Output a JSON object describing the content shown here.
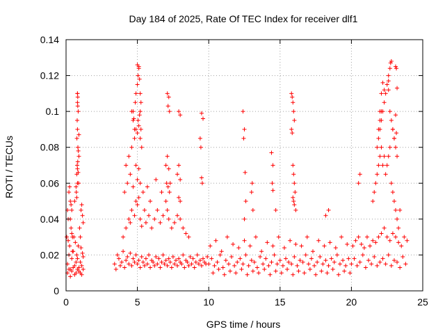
{
  "chart_data": {
    "type": "scatter",
    "title": "Day 184 of 2025, Rate Of TEC Index for receiver dlf1",
    "xlabel": "GPS time / hours",
    "ylabel": "ROTI / TECUs",
    "xlim": [
      0,
      25
    ],
    "ylim": [
      0,
      0.14
    ],
    "x_ticks": [
      0,
      5,
      10,
      15,
      20,
      25
    ],
    "x_tick_labels": [
      "0",
      "5",
      "10",
      "15",
      "20",
      "25"
    ],
    "y_ticks": [
      0,
      0.02,
      0.04,
      0.06,
      0.08,
      0.1,
      0.12,
      0.14
    ],
    "y_tick_labels": [
      "0",
      "0.02",
      "0.04",
      "0.06",
      "0.08",
      "0.1",
      "0.12",
      "0.14"
    ],
    "grid": true,
    "marker": "plus",
    "color": "#ff0000",
    "series": [
      {
        "x": [
          0.1,
          0.2,
          0.3,
          0.4,
          0.5,
          0.6,
          0.7,
          0.75,
          0.8,
          0.85,
          0.9,
          1.0,
          1.1,
          1.2,
          0.05,
          0.15,
          0.25,
          0.35,
          0.45,
          0.55,
          0.65,
          1.05,
          1.15,
          0.1,
          0.2,
          0.3,
          0.4,
          0.5,
          0.6,
          0.7,
          0.8,
          0.9,
          1.0,
          1.1,
          1.2,
          0.3,
          0.4,
          0.6,
          0.75,
          0.78,
          0.8,
          0.82,
          0.85,
          0.88,
          0.9,
          0.8,
          0.82,
          0.85,
          0.78,
          0.76,
          0.8,
          0.83,
          0.86,
          0.9,
          0.8,
          0.8,
          0.82,
          0.7,
          0.72,
          0.75,
          0.8,
          1.05,
          1.1,
          1.15,
          1.2,
          1.0,
          0.95,
          0.2,
          0.25,
          0.3,
          0.35,
          0.1,
          0.15,
          0.4,
          0.45,
          3.4,
          3.5,
          3.6,
          3.7,
          3.8,
          3.9,
          4.0,
          4.1,
          4.2,
          4.3,
          4.4,
          4.5,
          4.6,
          4.7,
          4.8,
          4.9,
          5.0,
          5.1,
          5.2,
          5.3,
          5.4,
          5.5,
          5.6,
          5.7,
          5.8,
          5.9,
          6.0,
          6.1,
          6.2,
          6.3,
          6.4,
          6.5,
          6.6,
          6.7,
          6.8,
          6.9,
          7.0,
          7.1,
          7.2,
          7.3,
          7.4,
          7.5,
          7.6,
          7.7,
          7.8,
          7.9,
          8.0,
          8.1,
          8.2,
          8.3,
          8.4,
          8.5,
          8.6,
          8.7,
          8.8,
          8.9,
          9.0,
          9.1,
          9.2,
          9.3,
          9.4,
          9.5,
          9.6,
          9.7,
          9.8,
          9.9,
          4.0,
          4.2,
          4.4,
          4.5,
          4.6,
          4.8,
          4.9,
          5.0,
          5.1,
          5.2,
          5.3,
          5.5,
          5.6,
          5.8,
          6.0,
          6.2,
          6.4,
          6.6,
          6.8,
          7.0,
          7.1,
          7.2,
          7.4,
          7.6,
          7.8,
          8.0,
          8.2,
          8.4,
          8.6,
          4.1,
          4.3,
          4.5,
          4.7,
          4.9,
          5.0,
          5.1,
          5.2,
          5.4,
          5.7,
          5.9,
          6.3,
          6.7,
          7.05,
          7.15,
          7.25,
          7.9,
          8.0,
          4.2,
          4.4,
          4.6,
          4.8,
          4.9,
          5.0,
          5.05,
          5.1,
          5.15,
          5.2,
          5.25,
          5.3,
          7.0,
          7.1,
          7.2,
          7.3,
          7.8,
          7.9,
          8.0,
          4.6,
          4.7,
          4.8,
          4.85,
          4.9,
          5.0,
          5.05,
          5.1,
          5.15,
          5.2,
          5.25,
          5.0,
          5.1,
          5.2,
          4.7,
          4.75,
          7.1,
          7.2,
          7.15,
          7.25,
          7.9,
          8.0,
          9.5,
          9.6,
          9.4,
          9.45,
          9.5,
          9.55,
          10.0,
          10.2,
          10.4,
          10.6,
          10.8,
          11.0,
          11.2,
          11.4,
          11.6,
          11.8,
          12.0,
          12.2,
          12.4,
          12.6,
          12.8,
          13.0,
          13.2,
          13.4,
          13.6,
          13.8,
          14.0,
          14.2,
          14.4,
          14.6,
          14.8,
          15.0,
          15.2,
          15.4,
          15.6,
          15.8,
          16.0,
          16.2,
          16.4,
          16.6,
          16.8,
          17.0,
          17.2,
          17.4,
          17.6,
          17.8,
          18.0,
          18.2,
          18.4,
          18.6,
          18.8,
          19.0,
          19.2,
          19.4,
          19.6,
          19.8,
          10.1,
          10.5,
          10.9,
          11.3,
          11.7,
          12.1,
          12.5,
          12.9,
          13.3,
          13.7,
          14.1,
          14.5,
          14.9,
          15.3,
          15.7,
          16.1,
          16.5,
          16.9,
          17.3,
          17.7,
          18.1,
          18.5,
          18.9,
          19.3,
          19.7,
          10.3,
          10.7,
          11.1,
          11.5,
          11.9,
          12.3,
          12.7,
          13.1,
          13.5,
          13.9,
          14.3,
          14.7,
          15.1,
          15.5,
          15.9,
          16.3,
          16.7,
          17.1,
          17.5,
          17.9,
          18.3,
          18.7,
          19.1,
          19.5,
          19.9,
          12.4,
          12.5,
          12.45,
          12.55,
          12.6,
          12.5,
          13.0,
          13.05,
          13.1,
          14.4,
          14.5,
          14.45,
          14.5,
          14.7,
          15.8,
          15.85,
          15.9,
          15.95,
          16.0,
          15.8,
          15.85,
          15.9,
          15.95,
          16.0,
          16.05,
          15.9,
          15.95,
          16.0,
          16.1,
          18.2,
          18.4,
          20.0,
          20.2,
          20.4,
          20.6,
          20.8,
          21.0,
          21.2,
          21.4,
          21.6,
          21.8,
          22.0,
          22.2,
          22.4,
          22.6,
          22.8,
          23.0,
          23.2,
          23.4,
          23.6,
          23.8,
          20.1,
          20.3,
          20.5,
          20.7,
          20.9,
          21.1,
          21.3,
          21.5,
          21.7,
          21.9,
          22.1,
          22.3,
          22.5,
          22.7,
          22.9,
          23.1,
          23.3,
          23.5,
          23.7,
          23.9,
          20.5,
          20.6,
          21.5,
          21.6,
          21.7,
          21.8,
          21.9,
          22.0,
          22.1,
          22.2,
          22.3,
          22.4,
          22.5,
          22.6,
          22.7,
          22.8,
          22.9,
          23.0,
          23.1,
          23.2,
          23.3,
          23.4,
          21.8,
          21.9,
          22.0,
          22.1,
          22.2,
          22.3,
          22.4,
          22.5,
          22.6,
          22.7,
          22.8,
          22.9,
          23.0,
          23.1,
          23.2,
          21.9,
          22.0,
          22.1,
          22.2,
          22.3,
          22.6,
          22.7,
          22.75,
          22.8,
          23.1,
          23.15,
          23.2,
          22.0,
          22.1,
          22.6,
          23.1,
          22.9,
          23.0,
          23.15
        ],
        "y": [
          0.015,
          0.02,
          0.012,
          0.018,
          0.022,
          0.014,
          0.016,
          0.02,
          0.018,
          0.025,
          0.013,
          0.016,
          0.014,
          0.019,
          0.03,
          0.028,
          0.025,
          0.035,
          0.022,
          0.03,
          0.027,
          0.024,
          0.021,
          0.01,
          0.012,
          0.008,
          0.011,
          0.013,
          0.009,
          0.01,
          0.012,
          0.011,
          0.01,
          0.009,
          0.012,
          0.04,
          0.045,
          0.05,
          0.065,
          0.07,
          0.068,
          0.072,
          0.066,
          0.06,
          0.075,
          0.11,
          0.108,
          0.1,
          0.095,
          0.085,
          0.09,
          0.08,
          0.078,
          0.087,
          0.105,
          0.11,
          0.103,
          0.058,
          0.055,
          0.052,
          0.06,
          0.045,
          0.048,
          0.042,
          0.038,
          0.03,
          0.035,
          0.055,
          0.058,
          0.05,
          0.048,
          0.045,
          0.04,
          0.032,
          0.03,
          0.015,
          0.012,
          0.02,
          0.018,
          0.014,
          0.016,
          0.022,
          0.013,
          0.017,
          0.019,
          0.015,
          0.021,
          0.014,
          0.018,
          0.016,
          0.02,
          0.015,
          0.017,
          0.013,
          0.019,
          0.016,
          0.014,
          0.018,
          0.015,
          0.02,
          0.013,
          0.017,
          0.016,
          0.014,
          0.019,
          0.015,
          0.018,
          0.013,
          0.016,
          0.02,
          0.015,
          0.017,
          0.014,
          0.018,
          0.016,
          0.013,
          0.019,
          0.015,
          0.017,
          0.014,
          0.018,
          0.016,
          0.015,
          0.02,
          0.013,
          0.017,
          0.016,
          0.014,
          0.019,
          0.015,
          0.018,
          0.013,
          0.016,
          0.02,
          0.015,
          0.017,
          0.014,
          0.018,
          0.016,
          0.015,
          0.019,
          0.03,
          0.035,
          0.04,
          0.038,
          0.045,
          0.042,
          0.05,
          0.048,
          0.052,
          0.04,
          0.036,
          0.045,
          0.038,
          0.042,
          0.035,
          0.04,
          0.045,
          0.038,
          0.042,
          0.05,
          0.045,
          0.04,
          0.035,
          0.038,
          0.042,
          0.04,
          0.035,
          0.032,
          0.03,
          0.055,
          0.06,
          0.065,
          0.058,
          0.07,
          0.062,
          0.068,
          0.06,
          0.055,
          0.058,
          0.05,
          0.062,
          0.055,
          0.06,
          0.058,
          0.055,
          0.052,
          0.05,
          0.07,
          0.075,
          0.08,
          0.085,
          0.09,
          0.088,
          0.095,
          0.092,
          0.098,
          0.085,
          0.09,
          0.08,
          0.07,
          0.075,
          0.068,
          0.06,
          0.065,
          0.07,
          0.062,
          0.1,
          0.095,
          0.09,
          0.105,
          0.11,
          0.115,
          0.12,
          0.125,
          0.118,
          0.11,
          0.105,
          0.126,
          0.124,
          0.1,
          0.1,
          0.096,
          0.11,
          0.108,
          0.103,
          0.1,
          0.1,
          0.098,
          0.099,
          0.096,
          0.085,
          0.08,
          0.063,
          0.06,
          0.015,
          0.018,
          0.014,
          0.016,
          0.02,
          0.013,
          0.017,
          0.015,
          0.019,
          0.014,
          0.016,
          0.018,
          0.015,
          0.02,
          0.014,
          0.017,
          0.016,
          0.013,
          0.019,
          0.015,
          0.018,
          0.014,
          0.016,
          0.02,
          0.015,
          0.017,
          0.014,
          0.018,
          0.016,
          0.015,
          0.019,
          0.014,
          0.017,
          0.016,
          0.02,
          0.015,
          0.018,
          0.014,
          0.016,
          0.019,
          0.015,
          0.017,
          0.014,
          0.018,
          0.016,
          0.02,
          0.015,
          0.017,
          0.014,
          0.018,
          0.025,
          0.028,
          0.022,
          0.03,
          0.026,
          0.024,
          0.028,
          0.025,
          0.03,
          0.022,
          0.027,
          0.025,
          0.03,
          0.024,
          0.028,
          0.026,
          0.025,
          0.03,
          0.022,
          0.028,
          0.025,
          0.027,
          0.024,
          0.03,
          0.026,
          0.01,
          0.012,
          0.009,
          0.011,
          0.01,
          0.012,
          0.009,
          0.011,
          0.01,
          0.012,
          0.009,
          0.011,
          0.01,
          0.012,
          0.009,
          0.011,
          0.01,
          0.012,
          0.009,
          0.011,
          0.01,
          0.012,
          0.009,
          0.011,
          0.01,
          0.1,
          0.09,
          0.085,
          0.066,
          0.05,
          0.04,
          0.055,
          0.06,
          0.045,
          0.077,
          0.07,
          0.06,
          0.056,
          0.045,
          0.11,
          0.108,
          0.105,
          0.1,
          0.095,
          0.09,
          0.088,
          0.07,
          0.065,
          0.06,
          0.055,
          0.052,
          0.05,
          0.048,
          0.045,
          0.042,
          0.045,
          0.015,
          0.018,
          0.014,
          0.016,
          0.02,
          0.013,
          0.017,
          0.015,
          0.019,
          0.014,
          0.016,
          0.018,
          0.015,
          0.02,
          0.014,
          0.017,
          0.016,
          0.013,
          0.019,
          0.015,
          0.025,
          0.028,
          0.03,
          0.026,
          0.024,
          0.03,
          0.025,
          0.028,
          0.027,
          0.03,
          0.032,
          0.035,
          0.03,
          0.028,
          0.032,
          0.03,
          0.027,
          0.025,
          0.03,
          0.028,
          0.06,
          0.065,
          0.05,
          0.055,
          0.06,
          0.065,
          0.07,
          0.075,
          0.08,
          0.07,
          0.075,
          0.065,
          0.07,
          0.075,
          0.08,
          0.06,
          0.055,
          0.05,
          0.045,
          0.04,
          0.035,
          0.045,
          0.08,
          0.085,
          0.09,
          0.095,
          0.1,
          0.105,
          0.11,
          0.115,
          0.112,
          0.1,
          0.095,
          0.09,
          0.085,
          0.08,
          0.075,
          0.09,
          0.1,
          0.11,
          0.116,
          0.112,
          0.12,
          0.124,
          0.127,
          0.128,
          0.125,
          0.124,
          0.113,
          0.095,
          0.1,
          0.117,
          0.098,
          0.09,
          0.085,
          0.088
        ]
      }
    ]
  }
}
